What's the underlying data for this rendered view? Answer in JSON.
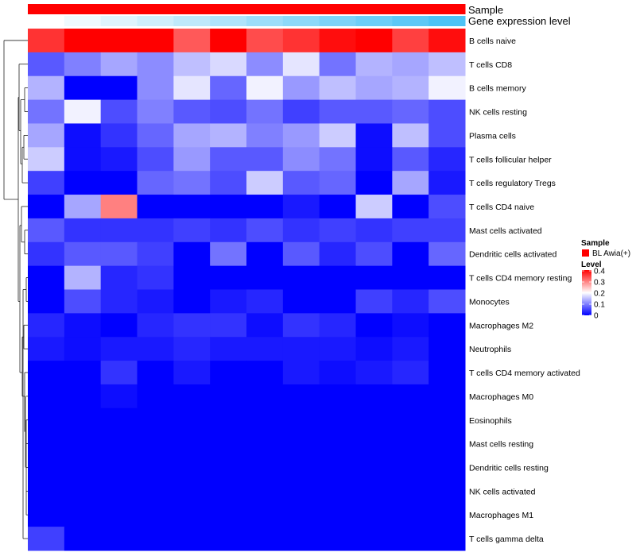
{
  "chart_data": {
    "type": "heatmap",
    "title": "",
    "annotations": {
      "sample": {
        "label": "Sample",
        "color": "#ff0000",
        "legend_title": "Sample",
        "legend_entry": "BL Awia(+)"
      },
      "gene_expression": {
        "label": "Gene expression level",
        "values": [
          0.0,
          0.09,
          0.18,
          0.27,
          0.36,
          0.45,
          0.55,
          0.64,
          0.73,
          0.82,
          0.91,
          1.0
        ],
        "low_color": "#ffffff",
        "high_color": "#4dc3f5"
      }
    },
    "row_labels": [
      "B cells naive",
      "T cells CD8",
      "B cells memory",
      "NK cells resting",
      "Plasma cells",
      "T cells follicular helper",
      "T cells regulatory  Tregs",
      "T cells CD4 naive",
      "Mast cells activated",
      "Dendritic cells activated",
      "T cells CD4 memory resting",
      "Monocytes",
      "Macrophages M2",
      "Neutrophils",
      "T cells CD4 memory activated",
      "Macrophages M0",
      "Eosinophils",
      "Mast cells resting",
      "Dendritic cells resting",
      "NK cells activated",
      "Macrophages M1",
      "T cells gamma delta"
    ],
    "values": [
      [
        0.36,
        0.44,
        0.42,
        0.45,
        0.33,
        0.43,
        0.34,
        0.36,
        0.39,
        0.44,
        0.35,
        0.39
      ],
      [
        0.07,
        0.1,
        0.13,
        0.11,
        0.15,
        0.17,
        0.11,
        0.18,
        0.09,
        0.14,
        0.13,
        0.15
      ],
      [
        0.14,
        0.0,
        0.0,
        0.11,
        0.18,
        0.08,
        0.19,
        0.12,
        0.15,
        0.13,
        0.14,
        0.19
      ],
      [
        0.09,
        0.19,
        0.06,
        0.1,
        0.07,
        0.06,
        0.09,
        0.05,
        0.07,
        0.07,
        0.08,
        0.06
      ],
      [
        0.13,
        0.01,
        0.04,
        0.08,
        0.13,
        0.14,
        0.1,
        0.12,
        0.16,
        0.01,
        0.15,
        0.06
      ],
      [
        0.16,
        0.01,
        0.02,
        0.06,
        0.12,
        0.07,
        0.07,
        0.11,
        0.09,
        0.01,
        0.07,
        0.03
      ],
      [
        0.05,
        0.0,
        0.0,
        0.08,
        0.09,
        0.06,
        0.16,
        0.07,
        0.08,
        0.0,
        0.13,
        0.02
      ],
      [
        0.0,
        0.13,
        0.3,
        0.0,
        0.0,
        0.0,
        0.0,
        0.02,
        0.0,
        0.16,
        0.0,
        0.06
      ],
      [
        0.07,
        0.04,
        0.04,
        0.04,
        0.05,
        0.04,
        0.06,
        0.04,
        0.05,
        0.04,
        0.05,
        0.05
      ],
      [
        0.04,
        0.07,
        0.07,
        0.05,
        0.0,
        0.09,
        0.0,
        0.07,
        0.03,
        0.06,
        0.0,
        0.08
      ],
      [
        0.0,
        0.14,
        0.03,
        0.04,
        0.0,
        0.0,
        0.0,
        0.0,
        0.0,
        0.0,
        0.0,
        0.0
      ],
      [
        0.0,
        0.06,
        0.03,
        0.02,
        0.0,
        0.02,
        0.03,
        0.0,
        0.0,
        0.05,
        0.03,
        0.06
      ],
      [
        0.03,
        0.01,
        0.0,
        0.03,
        0.04,
        0.04,
        0.01,
        0.04,
        0.03,
        0.0,
        0.01,
        0.0
      ],
      [
        0.02,
        0.01,
        0.02,
        0.02,
        0.03,
        0.02,
        0.02,
        0.02,
        0.02,
        0.01,
        0.02,
        0.0
      ],
      [
        0.0,
        0.0,
        0.04,
        0.0,
        0.02,
        0.0,
        0.0,
        0.02,
        0.01,
        0.02,
        0.03,
        0.0
      ],
      [
        0.0,
        0.0,
        0.01,
        0.0,
        0.0,
        0.0,
        0.0,
        0.0,
        0.0,
        0.0,
        0.0,
        0.0
      ],
      [
        0.0,
        0.0,
        0.0,
        0.0,
        0.0,
        0.0,
        0.0,
        0.0,
        0.0,
        0.0,
        0.0,
        0.0
      ],
      [
        0.0,
        0.0,
        0.0,
        0.0,
        0.0,
        0.0,
        0.0,
        0.0,
        0.0,
        0.0,
        0.0,
        0.0
      ],
      [
        0.0,
        0.0,
        0.0,
        0.0,
        0.0,
        0.0,
        0.0,
        0.0,
        0.0,
        0.0,
        0.0,
        0.0
      ],
      [
        0.0,
        0.0,
        0.0,
        0.0,
        0.0,
        0.0,
        0.0,
        0.0,
        0.0,
        0.0,
        0.0,
        0.0
      ],
      [
        0.0,
        0.0,
        0.0,
        0.0,
        0.0,
        0.0,
        0.0,
        0.0,
        0.0,
        0.0,
        0.0,
        0.0
      ],
      [
        0.05,
        0.0,
        0.0,
        0.0,
        0.0,
        0.0,
        0.0,
        0.0,
        0.0,
        0.0,
        0.0,
        0.0
      ]
    ],
    "color_scale": {
      "legend_title": "Level",
      "min": 0,
      "max": 0.4,
      "ticks": [
        0,
        0.1,
        0.2,
        0.3,
        0.4
      ],
      "tick_labels": [
        "0",
        "0.1",
        "0.2",
        "0.3",
        "0.4"
      ],
      "low_color": "#0000ff",
      "mid_color": "#ffffff",
      "high_color": "#ff0000"
    },
    "row_dendrogram": true,
    "legend_position": "right"
  }
}
